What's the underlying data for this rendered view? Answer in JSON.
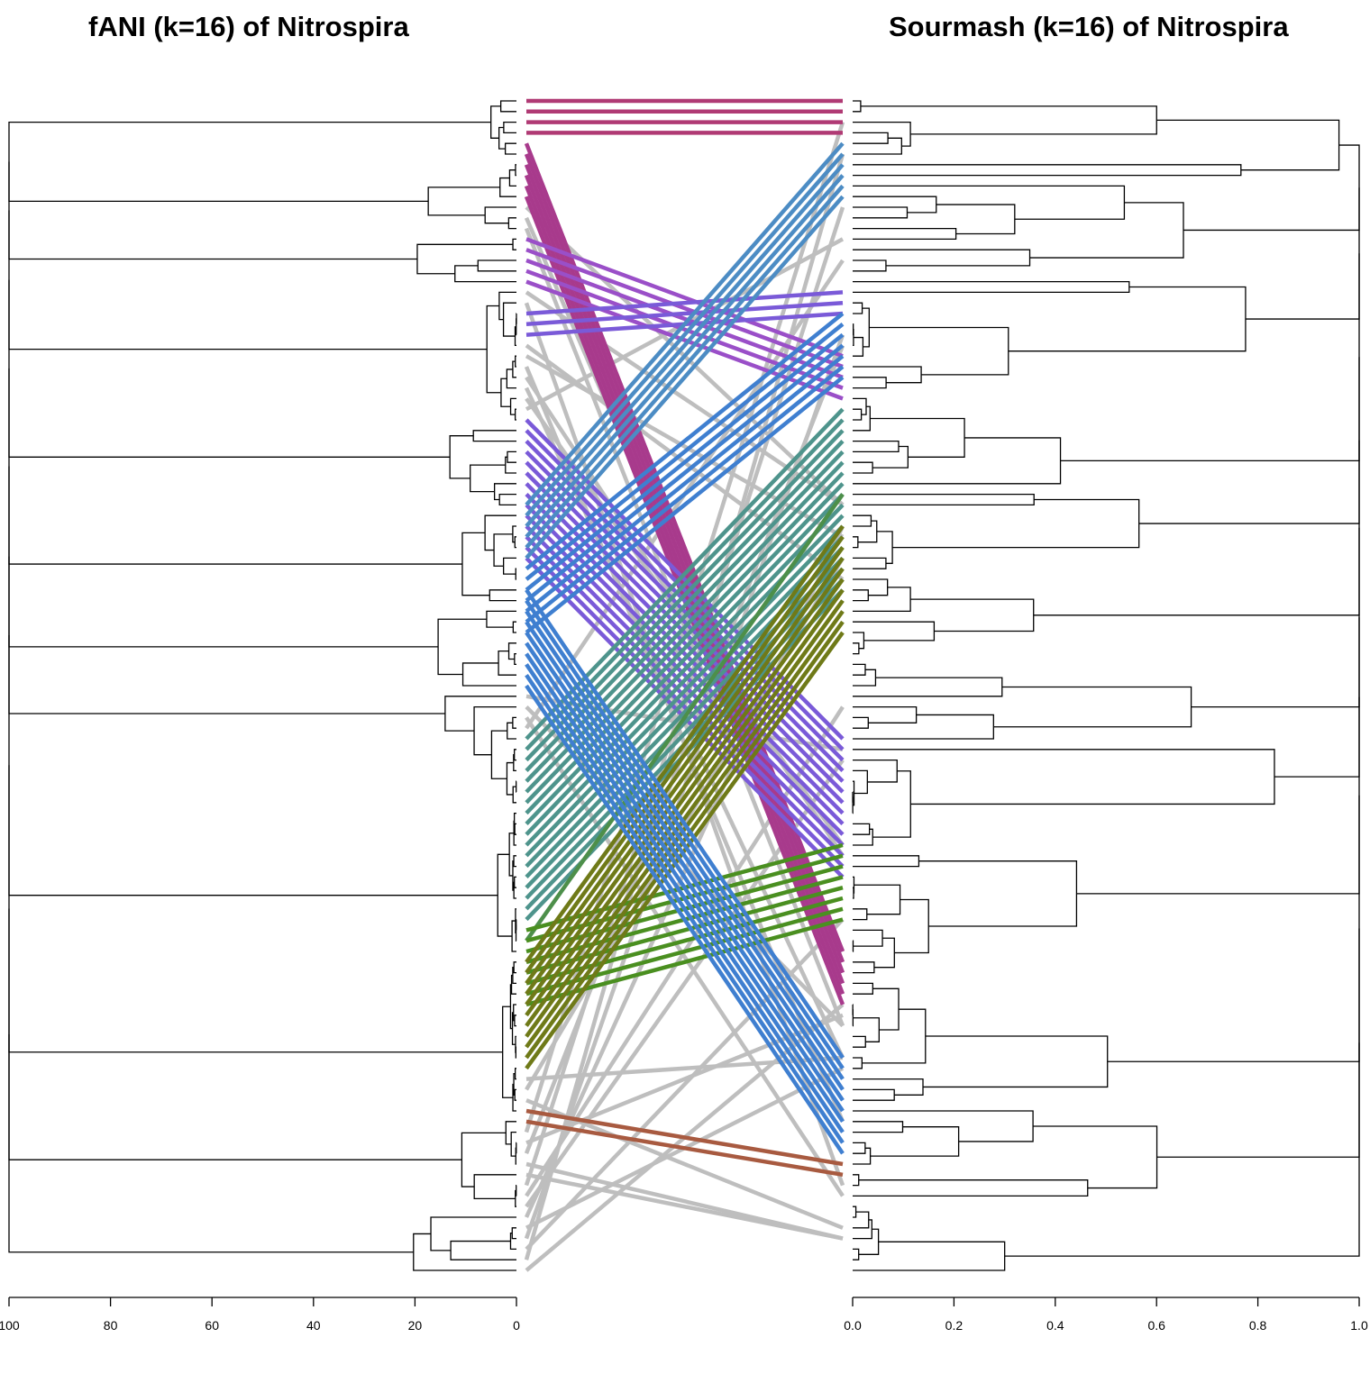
{
  "chart_data": [
    {
      "type": "dendrogram",
      "title": "fANI (k=16) of Nitrospira",
      "axis": {
        "direction": "reversed",
        "range": [
          100,
          0
        ],
        "ticks": [
          100,
          80,
          60,
          40,
          20,
          0
        ]
      },
      "leaf_count": 111
    },
    {
      "type": "dendrogram",
      "title": "Sourmash (k=16) of Nitrospira",
      "axis": {
        "direction": "normal",
        "range": [
          0.0,
          1.0
        ],
        "ticks": [
          "0.0",
          "0.2",
          "0.4",
          "0.6",
          "0.8",
          "1.0"
        ]
      },
      "leaf_count": 111
    }
  ],
  "tanglegram": {
    "connector_colors": {
      "unmatched": "#bebebe",
      "cluster_1": "#b03a74",
      "cluster_2": "#a83a8c",
      "cluster_3": "#9a4fc8",
      "cluster_4": "#7a5ad8",
      "cluster_5": "#3f7fd0",
      "cluster_6": "#4c8cc4",
      "cluster_7": "#4e948c",
      "cluster_8": "#4d8f4a",
      "cluster_9": "#4a8f20",
      "cluster_10": "#6f7a18",
      "cluster_11": "#a85a40"
    }
  }
}
